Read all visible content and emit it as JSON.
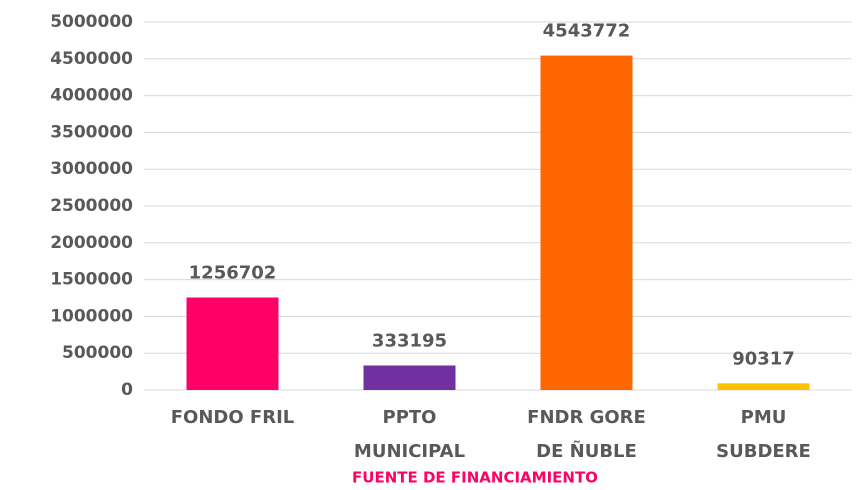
{
  "chart_data": {
    "type": "bar",
    "categories": [
      [
        "FONDO FRIL"
      ],
      [
        "PPTO",
        "MUNICIPAL"
      ],
      [
        "FNDR GORE",
        "DE ÑUBLE"
      ],
      [
        "PMU",
        "SUBDERE"
      ]
    ],
    "values": [
      1256702,
      333195,
      4543772,
      90317
    ],
    "colors": [
      "#ff0066",
      "#7030a0",
      "#ff6600",
      "#ffc000"
    ],
    "x_label": "FUENTE DE FINANCIAMIENTO",
    "ylim": [
      0,
      5000000
    ],
    "yticks": [
      0,
      500000,
      1000000,
      1500000,
      2000000,
      2500000,
      3000000,
      3500000,
      4000000,
      4500000,
      5000000
    ],
    "grid": true
  }
}
